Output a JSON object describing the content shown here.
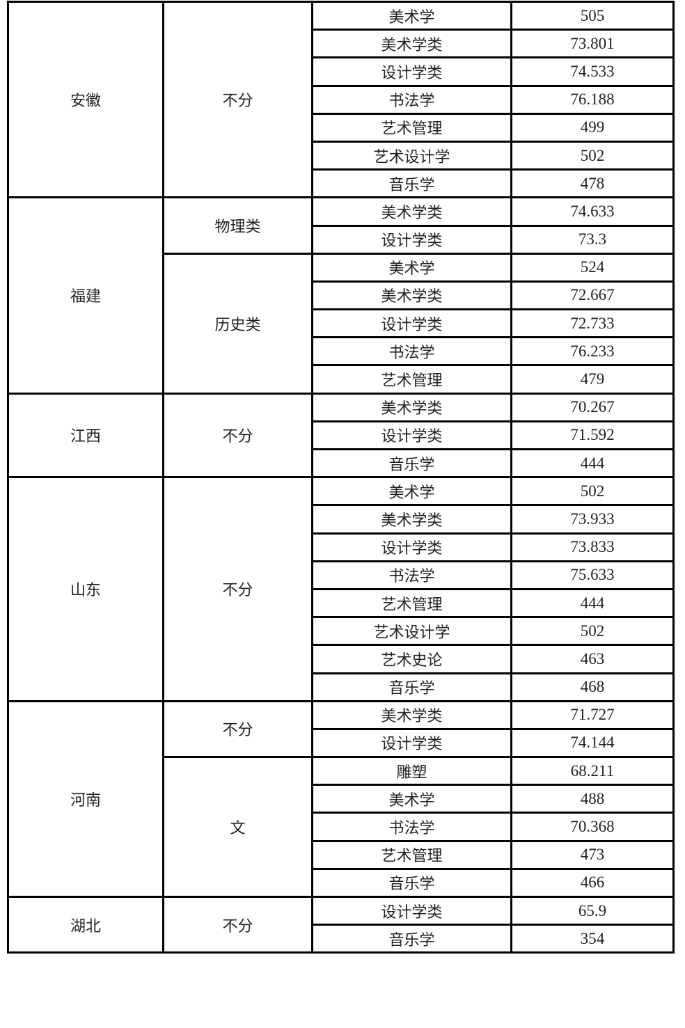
{
  "table": {
    "groups": [
      {
        "province": "安徽",
        "subgroups": [
          {
            "category": "不分",
            "rows": [
              {
                "major": "美术学",
                "score": "505"
              },
              {
                "major": "美术学类",
                "score": "73.801"
              },
              {
                "major": "设计学类",
                "score": "74.533"
              },
              {
                "major": "书法学",
                "score": "76.188"
              },
              {
                "major": "艺术管理",
                "score": "499"
              },
              {
                "major": "艺术设计学",
                "score": "502"
              },
              {
                "major": "音乐学",
                "score": "478"
              }
            ]
          }
        ]
      },
      {
        "province": "福建",
        "subgroups": [
          {
            "category": "物理类",
            "rows": [
              {
                "major": "美术学类",
                "score": "74.633"
              },
              {
                "major": "设计学类",
                "score": "73.3"
              }
            ]
          },
          {
            "category": "历史类",
            "rows": [
              {
                "major": "美术学",
                "score": "524"
              },
              {
                "major": "美术学类",
                "score": "72.667"
              },
              {
                "major": "设计学类",
                "score": "72.733"
              },
              {
                "major": "书法学",
                "score": "76.233"
              },
              {
                "major": "艺术管理",
                "score": "479"
              }
            ]
          }
        ]
      },
      {
        "province": "江西",
        "subgroups": [
          {
            "category": "不分",
            "rows": [
              {
                "major": "美术学类",
                "score": "70.267"
              },
              {
                "major": "设计学类",
                "score": "71.592"
              },
              {
                "major": "音乐学",
                "score": "444"
              }
            ]
          }
        ]
      },
      {
        "province": "山东",
        "subgroups": [
          {
            "category": "不分",
            "rows": [
              {
                "major": "美术学",
                "score": "502"
              },
              {
                "major": "美术学类",
                "score": "73.933"
              },
              {
                "major": "设计学类",
                "score": "73.833"
              },
              {
                "major": "书法学",
                "score": "75.633"
              },
              {
                "major": "艺术管理",
                "score": "444"
              },
              {
                "major": "艺术设计学",
                "score": "502"
              },
              {
                "major": "艺术史论",
                "score": "463"
              },
              {
                "major": "音乐学",
                "score": "468"
              }
            ]
          }
        ]
      },
      {
        "province": "河南",
        "subgroups": [
          {
            "category": "不分",
            "rows": [
              {
                "major": "美术学类",
                "score": "71.727"
              },
              {
                "major": "设计学类",
                "score": "74.144"
              }
            ]
          },
          {
            "category": "文",
            "rows": [
              {
                "major": "雕塑",
                "score": "68.211"
              },
              {
                "major": "美术学",
                "score": "488"
              },
              {
                "major": "书法学",
                "score": "70.368"
              },
              {
                "major": "艺术管理",
                "score": "473"
              },
              {
                "major": "音乐学",
                "score": "466"
              }
            ]
          }
        ]
      },
      {
        "province": "湖北",
        "subgroups": [
          {
            "category": "不分",
            "rows": [
              {
                "major": "设计学类",
                "score": "65.9"
              },
              {
                "major": "音乐学",
                "score": "354"
              }
            ]
          }
        ]
      }
    ]
  }
}
